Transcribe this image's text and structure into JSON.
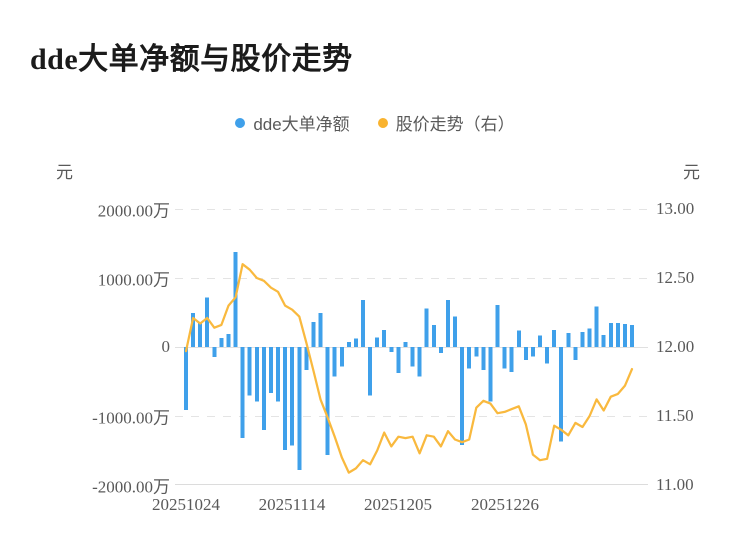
{
  "title": "dde大单净额与股价走势",
  "legend": [
    {
      "label": "dde大单净额",
      "color": "#3fa0ea"
    },
    {
      "label": "股价走势（右）",
      "color": "#f9b32f"
    }
  ],
  "left_axis": {
    "unit": "元",
    "ticks": [
      "2000.00万",
      "1000.00万",
      "0",
      "-1000.00万",
      "-2000.00万"
    ]
  },
  "right_axis": {
    "unit": "元",
    "ticks": [
      "13.00",
      "12.50",
      "12.00",
      "11.50",
      "11.00"
    ]
  },
  "x_axis": {
    "labels": [
      "20251024",
      "20251114",
      "20251205",
      "20251226"
    ],
    "label_bar_indices": [
      1,
      16,
      31,
      46
    ]
  },
  "chart_data": {
    "type": "bar+line combo",
    "title": "dde大单净额与股价走势",
    "grid": "horizontal dashed",
    "legend_position": "top-center",
    "left_ylabel": "元",
    "right_ylabel": "元",
    "left_ylim_wan": [
      -2000,
      2000
    ],
    "right_ylim": [
      11.0,
      13.0
    ],
    "x_tick_labels": [
      "20251024",
      "20251114",
      "20251205",
      "20251226"
    ],
    "series": [
      {
        "name": "dde大单净额",
        "type": "bar",
        "axis": "left",
        "unit": "万元",
        "color": "#3fa0ea",
        "values": [
          -910,
          490,
          350,
          720,
          -145,
          130,
          185,
          1375,
          -1320,
          -700,
          -790,
          -1200,
          -670,
          -790,
          -1490,
          -1430,
          -1780,
          -330,
          365,
          490,
          -1565,
          -430,
          -285,
          75,
          125,
          680,
          -700,
          140,
          250,
          -70,
          -380,
          75,
          -285,
          -430,
          560,
          320,
          -90,
          680,
          440,
          -1420,
          -310,
          -140,
          -330,
          -790,
          610,
          -310,
          -360,
          240,
          -190,
          -140,
          170,
          -240,
          250,
          -1370,
          200,
          -190,
          220,
          270,
          585,
          175,
          345,
          345,
          335,
          320
        ]
      },
      {
        "name": "股价走势（右）",
        "type": "line",
        "axis": "right",
        "unit": "元",
        "color": "#f9b93e",
        "values": [
          11.97,
          12.21,
          12.17,
          12.21,
          12.14,
          12.16,
          12.3,
          12.36,
          12.6,
          12.56,
          12.5,
          12.48,
          12.43,
          12.4,
          12.3,
          12.27,
          12.22,
          12.03,
          11.83,
          11.62,
          11.49,
          11.35,
          11.2,
          11.09,
          11.12,
          11.18,
          11.15,
          11.25,
          11.38,
          11.28,
          11.35,
          11.34,
          11.35,
          11.23,
          11.36,
          11.35,
          11.28,
          11.39,
          11.33,
          11.31,
          11.33,
          11.56,
          11.61,
          11.59,
          11.52,
          11.53,
          11.55,
          11.57,
          11.44,
          11.22,
          11.18,
          11.19,
          11.43,
          11.4,
          11.36,
          11.45,
          11.42,
          11.5,
          11.62,
          11.54,
          11.64,
          11.66,
          11.72,
          11.84
        ]
      }
    ]
  }
}
